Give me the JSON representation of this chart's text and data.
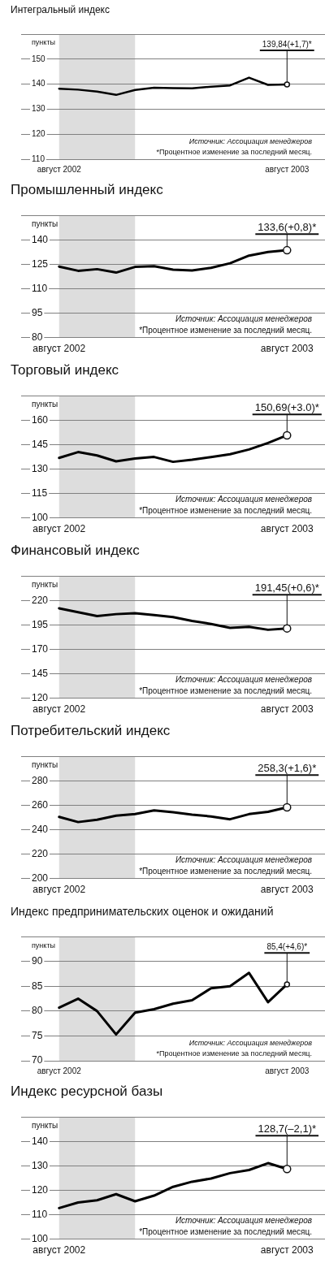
{
  "chart_data": [
    {
      "type": "line",
      "title": "Интегральный индекс",
      "ylabel": "пункты",
      "x": [
        "2002-08",
        "2002-09",
        "2002-10",
        "2002-11",
        "2002-12",
        "2003-01",
        "2003-02",
        "2003-03",
        "2003-04",
        "2003-05",
        "2003-06",
        "2003-07",
        "2003-08"
      ],
      "values": [
        138.2,
        137.8,
        137.0,
        135.7,
        137.7,
        138.6,
        138.4,
        138.3,
        139.0,
        139.5,
        142.6,
        139.7,
        139.84
      ],
      "color": "#000000",
      "xlim": [
        "2002-06",
        "2003-10"
      ],
      "xticks": [
        {
          "value": "2002-08",
          "label": "август 2002"
        },
        {
          "value": "2003-08",
          "label": "август 2003"
        }
      ],
      "ylim": [
        110,
        160
      ],
      "yticks": [
        110,
        120,
        130,
        140,
        150
      ],
      "grid": "y",
      "bands": [
        {
          "axis": "x",
          "from": "2002-08",
          "to": "2002-12",
          "color": "#dddddd"
        }
      ],
      "annotations": [
        {
          "text": "139,84(+1,7)*",
          "x": "2003-08",
          "y": 139.84
        },
        "Источник: Ассоциация менеджеров",
        "*Процентное изменение за последний месяц."
      ]
    },
    {
      "type": "line",
      "title": "Промышленный индекс",
      "ylabel": "пункты",
      "x": [
        "2002-08",
        "2002-09",
        "2002-10",
        "2002-11",
        "2002-12",
        "2003-01",
        "2003-02",
        "2003-03",
        "2003-04",
        "2003-05",
        "2003-06",
        "2003-07",
        "2003-08"
      ],
      "values": [
        123.6,
        121.0,
        122.0,
        119.9,
        123.4,
        123.8,
        121.7,
        121.2,
        122.8,
        125.6,
        130.3,
        132.5,
        133.6
      ],
      "color": "#000000",
      "xlim": [
        "2002-06",
        "2003-10"
      ],
      "xticks": [
        {
          "value": "2002-08",
          "label": "август 2002"
        },
        {
          "value": "2003-08",
          "label": "август 2003"
        }
      ],
      "ylim": [
        80,
        155
      ],
      "yticks": [
        80,
        95,
        110,
        125,
        140
      ],
      "grid": "y",
      "bands": [
        {
          "axis": "x",
          "from": "2002-08",
          "to": "2002-12",
          "color": "#dddddd"
        }
      ],
      "annotations": [
        {
          "text": "133,6(+0,8)*",
          "x": "2003-08",
          "y": 133.6
        },
        "Источник: Ассоциация менеджеров",
        "*Процентное изменение за последний месяц."
      ]
    },
    {
      "type": "line",
      "title": "Торговый индекс",
      "ylabel": "пункты",
      "x": [
        "2002-08",
        "2002-09",
        "2002-10",
        "2002-11",
        "2002-12",
        "2003-01",
        "2003-02",
        "2003-03",
        "2003-04",
        "2003-05",
        "2003-06",
        "2003-07",
        "2003-08"
      ],
      "values": [
        136.8,
        140.4,
        138.3,
        134.7,
        136.4,
        137.4,
        134.4,
        135.7,
        137.3,
        139.1,
        142.0,
        146.0,
        150.69
      ],
      "color": "#000000",
      "xlim": [
        "2002-06",
        "2003-10"
      ],
      "xticks": [
        {
          "value": "2002-08",
          "label": "август 2002"
        },
        {
          "value": "2003-08",
          "label": "август 2003"
        }
      ],
      "ylim": [
        100,
        175
      ],
      "yticks": [
        100,
        115,
        130,
        145,
        160
      ],
      "grid": "y",
      "bands": [
        {
          "axis": "x",
          "from": "2002-08",
          "to": "2002-12",
          "color": "#dddddd"
        }
      ],
      "annotations": [
        {
          "text": "150,69(+3.0)*",
          "x": "2003-08",
          "y": 150.69
        },
        "Источник: Ассоциация менеджеров",
        "*Процентное изменение за последний месяц."
      ]
    },
    {
      "type": "line",
      "title": "Финансовый индекс",
      "ylabel": "пункты",
      "x": [
        "2002-08",
        "2002-09",
        "2002-10",
        "2002-11",
        "2002-12",
        "2003-01",
        "2003-02",
        "2003-03",
        "2003-04",
        "2003-05",
        "2003-06",
        "2003-07",
        "2003-08"
      ],
      "values": [
        212,
        208,
        204,
        206,
        207,
        205,
        203,
        199,
        196,
        192,
        193,
        190,
        191.45
      ],
      "color": "#000000",
      "xlim": [
        "2002-06",
        "2003-10"
      ],
      "xticks": [
        {
          "value": "2002-08",
          "label": "август 2002"
        },
        {
          "value": "2003-08",
          "label": "август 2003"
        }
      ],
      "ylim": [
        120,
        245
      ],
      "yticks": [
        120,
        145,
        170,
        195,
        220
      ],
      "grid": "y",
      "bands": [
        {
          "axis": "x",
          "from": "2002-08",
          "to": "2002-12",
          "color": "#dddddd"
        }
      ],
      "annotations": [
        {
          "text": "191,45(+0,6)*",
          "x": "2003-08",
          "y": 191.45
        },
        "Источник: Ассоциация менеджеров",
        "*Процентное изменение за последний месяц."
      ]
    },
    {
      "type": "line",
      "title": "Потребительский индекс",
      "ylabel": "пункты",
      "x": [
        "2002-08",
        "2002-09",
        "2002-10",
        "2002-11",
        "2002-12",
        "2003-01",
        "2003-02",
        "2003-03",
        "2003-04",
        "2003-05",
        "2003-06",
        "2003-07",
        "2003-08"
      ],
      "values": [
        250.4,
        246.2,
        248.1,
        251.4,
        252.7,
        255.8,
        254.2,
        252.3,
        250.8,
        248.5,
        252.7,
        254.6,
        258.3
      ],
      "color": "#000000",
      "xlim": [
        "2002-06",
        "2003-10"
      ],
      "xticks": [
        {
          "value": "2002-08",
          "label": "август 2002"
        },
        {
          "value": "2003-08",
          "label": "август 2003"
        }
      ],
      "ylim": [
        200,
        300
      ],
      "yticks": [
        200,
        220,
        240,
        260,
        280
      ],
      "grid": "y",
      "bands": [
        {
          "axis": "x",
          "from": "2002-08",
          "to": "2002-12",
          "color": "#dddddd"
        }
      ],
      "annotations": [
        {
          "text": "258,3(+1,6)*",
          "x": "2003-08",
          "y": 258.3
        },
        "Источник: Ассоциация менеджеров",
        "*Процентное изменение за последний месяц."
      ]
    },
    {
      "type": "line",
      "title": "Индекс предпринимательских оценок и ожиданий",
      "ylabel": "пункты",
      "x": [
        "2002-08",
        "2002-09",
        "2002-10",
        "2002-11",
        "2002-12",
        "2003-01",
        "2003-02",
        "2003-03",
        "2003-04",
        "2003-05",
        "2003-06",
        "2003-07",
        "2003-08"
      ],
      "values": [
        80.7,
        82.5,
        80.0,
        75.3,
        79.7,
        80.4,
        81.5,
        82.2,
        84.6,
        85.0,
        87.7,
        81.8,
        85.4
      ],
      "color": "#000000",
      "xlim": [
        "2002-06",
        "2003-10"
      ],
      "xticks": [
        {
          "value": "2002-08",
          "label": "август 2002"
        },
        {
          "value": "2003-08",
          "label": "август 2003"
        }
      ],
      "ylim": [
        70,
        95
      ],
      "yticks": [
        70,
        75,
        80,
        85,
        90
      ],
      "grid": "y",
      "bands": [
        {
          "axis": "x",
          "from": "2002-08",
          "to": "2002-12",
          "color": "#dddddd"
        }
      ],
      "annotations": [
        {
          "text": "85,4(+4,6)*",
          "x": "2003-08",
          "y": 85.4
        },
        "Источник: Ассоциация менеджеров",
        "*Процентное изменение за последний месяц."
      ]
    },
    {
      "type": "line",
      "title": "Индекс ресурсной базы",
      "ylabel": "пункты",
      "x": [
        "2002-08",
        "2002-09",
        "2002-10",
        "2002-11",
        "2002-12",
        "2003-01",
        "2003-02",
        "2003-03",
        "2003-04",
        "2003-05",
        "2003-06",
        "2003-07",
        "2003-08"
      ],
      "values": [
        112.7,
        115.0,
        115.9,
        118.4,
        115.5,
        117.8,
        121.4,
        123.5,
        124.8,
        127.0,
        128.3,
        131.1,
        128.7
      ],
      "color": "#000000",
      "xlim": [
        "2002-06",
        "2003-10"
      ],
      "xticks": [
        {
          "value": "2002-08",
          "label": "август 2002"
        },
        {
          "value": "2003-08",
          "label": "август 2003"
        }
      ],
      "ylim": [
        100,
        150
      ],
      "yticks": [
        100,
        110,
        120,
        130,
        140
      ],
      "grid": "y",
      "bands": [
        {
          "axis": "x",
          "from": "2002-08",
          "to": "2002-12",
          "color": "#dddddd"
        }
      ],
      "annotations": [
        {
          "text": "128,7(–2,1)*",
          "x": "2003-08",
          "y": 128.7
        },
        "Источник: Ассоциация менеджеров",
        "*Процентное изменение за последний месяц."
      ]
    }
  ]
}
